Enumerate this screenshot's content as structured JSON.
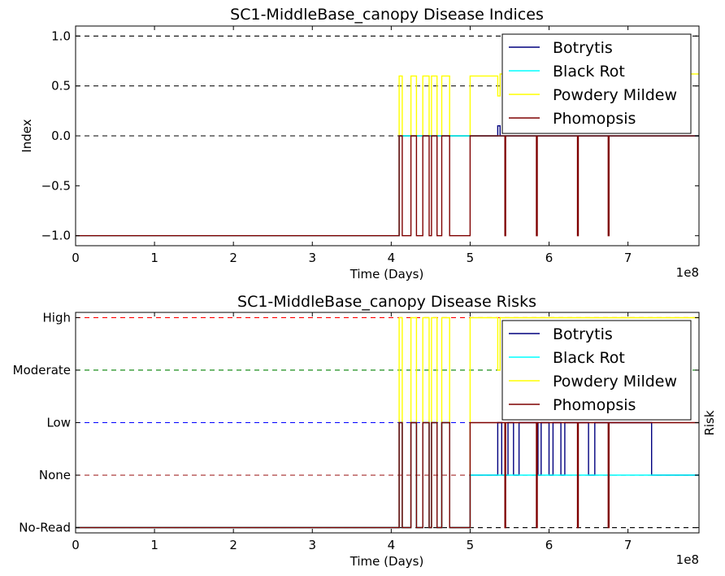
{
  "chart_data": [
    {
      "type": "line",
      "title": "SC1-MiddleBase_canopy Disease Indices",
      "xlabel": "Time (Days)",
      "ylabel": "Index",
      "xlim": [
        0,
        7.9
      ],
      "ylim": [
        -1.1,
        1.1
      ],
      "x_offset_label": "1e8",
      "x_ticks": [
        0,
        1,
        2,
        3,
        4,
        5,
        6,
        7
      ],
      "x_tick_labels": [
        "0",
        "1",
        "2",
        "3",
        "4",
        "5",
        "6",
        "7"
      ],
      "y_ticks": [
        -1.0,
        -0.5,
        0.0,
        0.5,
        1.0
      ],
      "y_tick_labels": [
        "−1.0",
        "−0.5",
        "0.0",
        "0.5",
        "1.0"
      ],
      "reference_lines": [
        {
          "y": 1.0,
          "color": "#000000"
        },
        {
          "y": 0.5,
          "color": "#000000"
        },
        {
          "y": 0.0,
          "color": "#000000"
        }
      ],
      "legend": {
        "placement": "top-right",
        "entries": [
          "Botrytis",
          "Black Rot",
          "Powdery Mildew",
          "Phomopsis"
        ]
      },
      "series": [
        {
          "name": "Powdery Mildew",
          "color": "#ffff00",
          "step": true,
          "x": [
            0,
            4.1,
            4.1,
            4.14,
            4.14,
            4.25,
            4.25,
            4.32,
            4.32,
            4.4,
            4.4,
            4.48,
            4.48,
            4.51,
            4.51,
            4.58,
            4.58,
            4.64,
            4.64,
            4.74,
            4.74,
            5.0,
            5.0,
            5.35,
            5.35,
            5.38,
            5.38,
            7.9
          ],
          "y": [
            -1,
            -1,
            0.6,
            0.6,
            0,
            0,
            0.6,
            0.6,
            0,
            0,
            0.6,
            0.6,
            0,
            0,
            0.6,
            0.6,
            0,
            0,
            0.6,
            0.6,
            0,
            0,
            0.6,
            0.6,
            0.4,
            0.4,
            0.62,
            0.62
          ]
        },
        {
          "name": "Botrytis",
          "color": "#00007f",
          "step": true,
          "x": [
            0,
            4.1,
            4.1,
            5.0,
            5.0,
            5.35,
            5.35,
            5.38,
            5.38,
            7.9
          ],
          "y": [
            -1,
            -1,
            0,
            0,
            0,
            0,
            0.1,
            0.1,
            0,
            0
          ]
        },
        {
          "name": "Black Rot",
          "color": "#00ffff",
          "step": true,
          "x": [
            0,
            4.1,
            4.1,
            7.9
          ],
          "y": [
            -1,
            -1,
            0,
            0
          ]
        },
        {
          "name": "Phomopsis",
          "color": "#7f0000",
          "step": true,
          "x": [
            0,
            4.1,
            4.1,
            4.14,
            4.14,
            4.25,
            4.25,
            4.32,
            4.32,
            4.4,
            4.4,
            4.48,
            4.48,
            4.51,
            4.51,
            4.58,
            4.58,
            4.64,
            4.64,
            4.74,
            4.74,
            5.0,
            5.0,
            5.44,
            5.44,
            5.45,
            5.45,
            5.84,
            5.84,
            5.85,
            5.85,
            6.36,
            6.36,
            6.37,
            6.37,
            6.75,
            6.75,
            6.76,
            6.76,
            7.9
          ],
          "y": [
            -1,
            -1,
            0,
            0,
            -1,
            -1,
            0,
            0,
            -1,
            -1,
            0,
            0,
            -1,
            -1,
            0,
            0,
            -1,
            -1,
            0,
            0,
            -1,
            -1,
            0,
            0,
            -1,
            -1,
            0,
            0,
            -1,
            -1,
            0,
            0,
            -1,
            -1,
            0,
            0,
            -1,
            -1,
            0,
            0
          ]
        }
      ]
    },
    {
      "type": "line",
      "title": "SC1-MiddleBase_canopy Disease Risks",
      "xlabel": "Time (Days)",
      "ylabel": "Risk",
      "xlim": [
        0,
        7.9
      ],
      "ylim": [
        -0.1,
        4.1
      ],
      "x_offset_label": "1e8",
      "x_ticks": [
        0,
        1,
        2,
        3,
        4,
        5,
        6,
        7
      ],
      "x_tick_labels": [
        "0",
        "1",
        "2",
        "3",
        "4",
        "5",
        "6",
        "7"
      ],
      "y_ticks": [
        0,
        1,
        2,
        3,
        4
      ],
      "y_tick_labels": [
        "No-Read",
        "None",
        "Low",
        "Moderate",
        "High"
      ],
      "reference_lines": [
        {
          "y": 4,
          "color": "#ff0000"
        },
        {
          "y": 3,
          "color": "#008000"
        },
        {
          "y": 2,
          "color": "#0000ff"
        },
        {
          "y": 1,
          "color": "#a52a2a"
        },
        {
          "y": 0,
          "color": "#000000"
        }
      ],
      "legend": {
        "placement": "top-right",
        "entries": [
          "Botrytis",
          "Black Rot",
          "Powdery Mildew",
          "Phomopsis"
        ]
      },
      "series": [
        {
          "name": "Powdery Mildew",
          "color": "#ffff00",
          "step": true,
          "x": [
            0,
            4.1,
            4.1,
            4.14,
            4.14,
            4.25,
            4.25,
            4.32,
            4.32,
            4.4,
            4.4,
            4.48,
            4.48,
            4.51,
            4.51,
            4.58,
            4.58,
            4.64,
            4.64,
            4.74,
            4.74,
            5.0,
            5.0,
            5.35,
            5.35,
            5.38,
            5.38,
            7.9
          ],
          "y": [
            0,
            0,
            4,
            4,
            0,
            0,
            4,
            4,
            0,
            0,
            4,
            4,
            0,
            0,
            4,
            4,
            0,
            0,
            4,
            4,
            0,
            0,
            4,
            4,
            3,
            3,
            4,
            4
          ]
        },
        {
          "name": "Botrytis",
          "color": "#00007f",
          "step": true,
          "x": [
            0,
            4.1,
            4.1,
            4.14,
            4.14,
            4.25,
            4.25,
            4.32,
            4.32,
            4.4,
            4.4,
            4.48,
            4.48,
            4.51,
            4.51,
            4.58,
            4.58,
            4.64,
            4.64,
            4.74,
            4.74,
            5.0,
            5.0,
            5.35,
            5.35,
            5.4,
            5.4,
            5.48,
            5.48,
            5.55,
            5.55,
            5.62,
            5.62,
            5.86,
            5.86,
            5.9,
            5.9,
            6.0,
            6.0,
            6.05,
            6.05,
            6.15,
            6.15,
            6.2,
            6.2,
            6.5,
            6.5,
            6.58,
            6.58,
            7.3,
            7.3,
            7.9
          ],
          "y": [
            0,
            0,
            2,
            2,
            0,
            0,
            2,
            2,
            0,
            0,
            2,
            2,
            0,
            0,
            2,
            2,
            0,
            0,
            2,
            2,
            0,
            0,
            1,
            1,
            2,
            2,
            1,
            1,
            2,
            2,
            1,
            1,
            2,
            2,
            1,
            1,
            2,
            2,
            1,
            1,
            2,
            2,
            1,
            1,
            2,
            2,
            1,
            1,
            2,
            2,
            1,
            1
          ]
        },
        {
          "name": "Black Rot",
          "color": "#00ffff",
          "step": true,
          "x": [
            0,
            4.1,
            4.1,
            4.14,
            4.14,
            4.25,
            4.25,
            4.32,
            4.32,
            4.4,
            4.4,
            4.48,
            4.48,
            4.51,
            4.51,
            4.58,
            4.58,
            4.64,
            4.64,
            4.74,
            4.74,
            5.0,
            5.0,
            7.9
          ],
          "y": [
            0,
            0,
            2,
            2,
            0,
            0,
            2,
            2,
            0,
            0,
            2,
            2,
            0,
            0,
            2,
            2,
            0,
            0,
            2,
            2,
            0,
            0,
            1,
            1
          ]
        },
        {
          "name": "Phomopsis",
          "color": "#7f0000",
          "step": true,
          "x": [
            0,
            4.1,
            4.1,
            4.14,
            4.14,
            4.25,
            4.25,
            4.32,
            4.32,
            4.4,
            4.4,
            4.48,
            4.48,
            4.51,
            4.51,
            4.58,
            4.58,
            4.64,
            4.64,
            4.74,
            4.74,
            5.0,
            5.0,
            5.44,
            5.44,
            5.45,
            5.45,
            5.84,
            5.84,
            5.85,
            5.85,
            6.36,
            6.36,
            6.37,
            6.37,
            6.75,
            6.75,
            6.76,
            6.76,
            7.9
          ],
          "y": [
            0,
            0,
            2,
            2,
            0,
            0,
            2,
            2,
            0,
            0,
            2,
            2,
            0,
            0,
            2,
            2,
            0,
            0,
            2,
            2,
            0,
            0,
            2,
            2,
            0,
            0,
            2,
            2,
            0,
            0,
            2,
            2,
            0,
            0,
            2,
            2,
            0,
            0,
            2,
            2
          ]
        }
      ]
    }
  ]
}
